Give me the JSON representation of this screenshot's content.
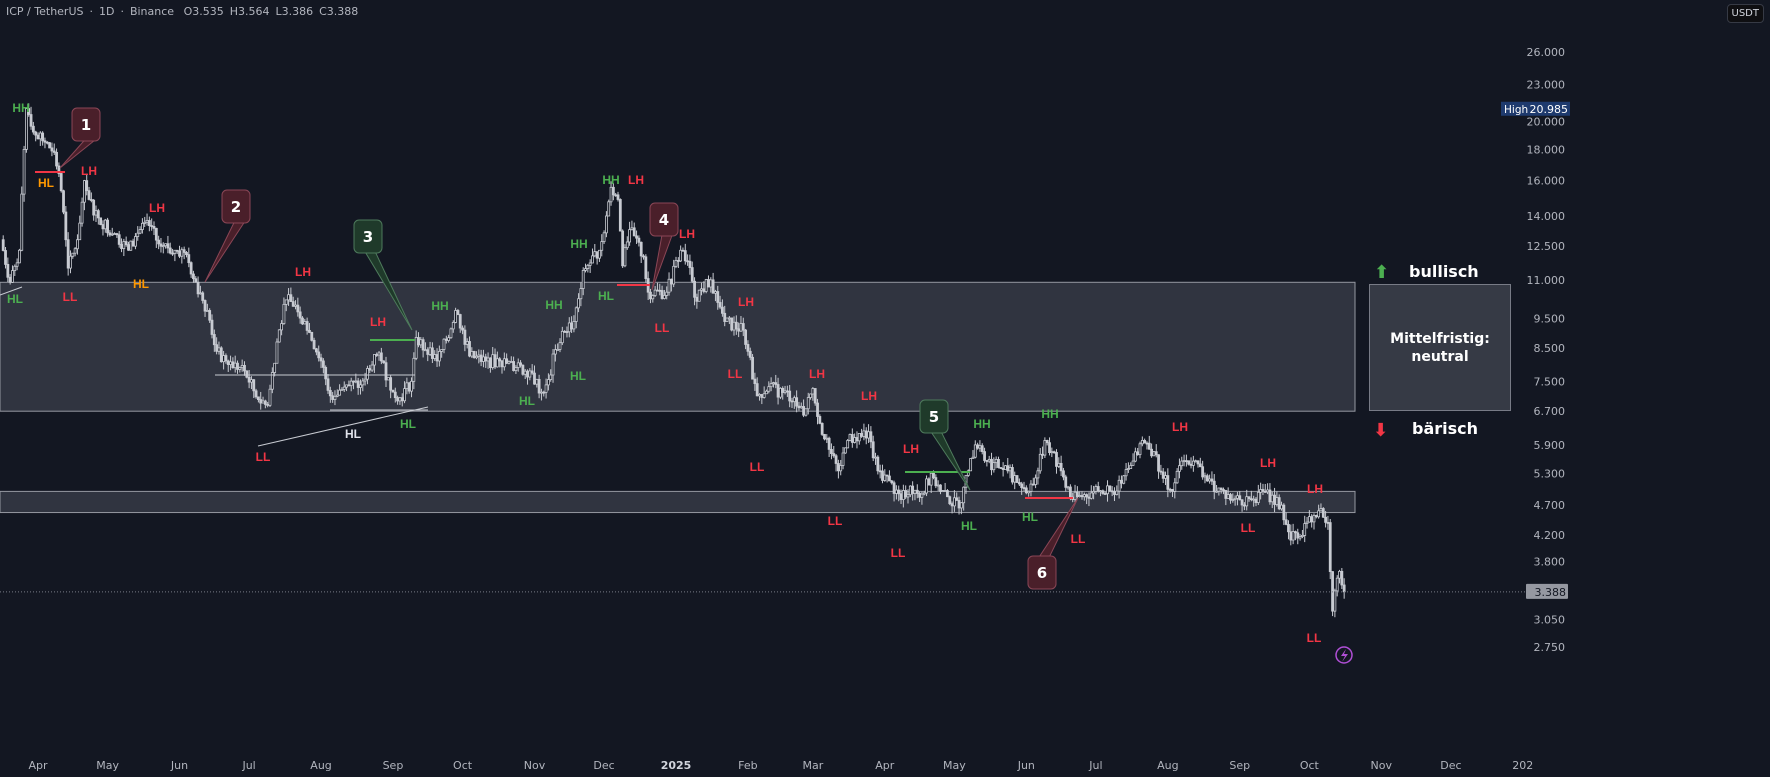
{
  "header": {
    "symbol": "ICP / TetherUS",
    "interval": "1D",
    "exchange": "Binance",
    "open": "O3.535",
    "high": "H3.564",
    "low": "L3.386",
    "close": "C3.388"
  },
  "currency": "USDT",
  "high_marker": {
    "label": "High",
    "value": "20.985"
  },
  "last_price": "3.388",
  "legend_panel": {
    "bullish": "bullisch",
    "title": "Mittelfristig:",
    "state": "neutral",
    "bearish": "bärisch"
  },
  "callouts": [
    "1",
    "2",
    "3",
    "4",
    "5",
    "6"
  ],
  "structure_labels": [
    "HH",
    "HL",
    "HL",
    "LH",
    "LL",
    "LH",
    "HL",
    "LH",
    "LL",
    "HL",
    "LH",
    "HL",
    "HH",
    "HH",
    "HL",
    "HL",
    "HH",
    "HL",
    "HH",
    "LH",
    "LH",
    "LL",
    "LH",
    "LL",
    "LH",
    "LL",
    "LH",
    "LL",
    "LH",
    "LL",
    "HL",
    "HH",
    "HH",
    "HL",
    "LL",
    "LH",
    "LH",
    "LL",
    "LH",
    "LL"
  ],
  "colors": {
    "background": "#131722",
    "bullish": "#4caf50",
    "bearish": "#f23645",
    "orange": "#ff9800",
    "zone": "#363a45",
    "candle": "#c8cbd2",
    "high_badge": "#1e3a6e"
  },
  "chart_data": {
    "type": "candlestick",
    "scale": "log",
    "grid": false,
    "ylim": [
      2.6,
      28
    ],
    "xlim": [
      "2024-03-16",
      "2026-01-05"
    ],
    "y_ticks": [
      "26.000",
      "23.000",
      "20.000",
      "18.000",
      "16.000",
      "14.000",
      "12.500",
      "11.000",
      "9.500",
      "8.500",
      "7.500",
      "6.700",
      "5.900",
      "5.300",
      "4.700",
      "4.200",
      "3.800",
      "3.050",
      "2.750"
    ],
    "x_ticks": [
      {
        "label": "Apr",
        "date": "2024-04-01"
      },
      {
        "label": "May",
        "date": "2024-05-01"
      },
      {
        "label": "Jun",
        "date": "2024-06-01"
      },
      {
        "label": "Jul",
        "date": "2024-07-01"
      },
      {
        "label": "Aug",
        "date": "2024-08-01"
      },
      {
        "label": "Sep",
        "date": "2024-09-01"
      },
      {
        "label": "Oct",
        "date": "2024-10-01"
      },
      {
        "label": "Nov",
        "date": "2024-11-01"
      },
      {
        "label": "Dec",
        "date": "2024-12-01"
      },
      {
        "label": "2025",
        "date": "2025-01-01"
      },
      {
        "label": "Feb",
        "date": "2025-02-01"
      },
      {
        "label": "Mar",
        "date": "2025-03-01"
      },
      {
        "label": "Apr",
        "date": "2025-04-01"
      },
      {
        "label": "May",
        "date": "2025-05-01"
      },
      {
        "label": "Jun",
        "date": "2025-06-01"
      },
      {
        "label": "Jul",
        "date": "2025-07-01"
      },
      {
        "label": "Aug",
        "date": "2025-08-01"
      },
      {
        "label": "Sep",
        "date": "2025-09-01"
      },
      {
        "label": "Oct",
        "date": "2025-10-01"
      },
      {
        "label": "Nov",
        "date": "2025-11-01"
      },
      {
        "label": "Dec",
        "date": "2025-12-01"
      },
      {
        "label": "202",
        "date": "2026-01-01"
      }
    ],
    "zones": [
      {
        "top": 10.9,
        "bottom": 6.7
      },
      {
        "top": 4.95,
        "bottom": 4.57
      }
    ],
    "close_path": [
      [
        "2024-03-16",
        12.8
      ],
      [
        "2024-03-20",
        10.9
      ],
      [
        "2024-03-24",
        12.3
      ],
      [
        "2024-03-26",
        18.0
      ],
      [
        "2024-03-27",
        21.0
      ],
      [
        "2024-03-31",
        19.0
      ],
      [
        "2024-04-04",
        18.5
      ],
      [
        "2024-04-08",
        17.8
      ],
      [
        "2024-04-11",
        15.4
      ],
      [
        "2024-04-13",
        12.8
      ],
      [
        "2024-04-14",
        11.5
      ],
      [
        "2024-04-18",
        12.8
      ],
      [
        "2024-04-21",
        16.0
      ],
      [
        "2024-04-23",
        14.9
      ],
      [
        "2024-04-27",
        13.9
      ],
      [
        "2024-05-04",
        13.1
      ],
      [
        "2024-05-10",
        12.3
      ],
      [
        "2024-05-15",
        13.3
      ],
      [
        "2024-05-19",
        13.5
      ],
      [
        "2024-05-23",
        12.6
      ],
      [
        "2024-05-30",
        12.3
      ],
      [
        "2024-06-04",
        12.1
      ],
      [
        "2024-06-08",
        10.9
      ],
      [
        "2024-06-13",
        9.8
      ],
      [
        "2024-06-17",
        8.4
      ],
      [
        "2024-06-21",
        8.1
      ],
      [
        "2024-06-29",
        7.8
      ],
      [
        "2024-07-05",
        7.0
      ],
      [
        "2024-07-09",
        6.85
      ],
      [
        "2024-07-13",
        8.7
      ],
      [
        "2024-07-17",
        10.2
      ],
      [
        "2024-07-21",
        10.0
      ],
      [
        "2024-07-25",
        9.4
      ],
      [
        "2024-08-01",
        8.1
      ],
      [
        "2024-08-05",
        7.1
      ],
      [
        "2024-08-12",
        7.4
      ],
      [
        "2024-08-18",
        7.4
      ],
      [
        "2024-08-24",
        8.3
      ],
      [
        "2024-08-27",
        8.1
      ],
      [
        "2024-09-01",
        7.2
      ],
      [
        "2024-09-04",
        7.05
      ],
      [
        "2024-09-09",
        7.5
      ],
      [
        "2024-09-11",
        8.85
      ],
      [
        "2024-09-15",
        8.45
      ],
      [
        "2024-09-20",
        8.1
      ],
      [
        "2024-09-24",
        8.75
      ],
      [
        "2024-09-28",
        9.8
      ],
      [
        "2024-10-01",
        9.1
      ],
      [
        "2024-10-04",
        8.25
      ],
      [
        "2024-10-11",
        8.1
      ],
      [
        "2024-10-17",
        8.1
      ],
      [
        "2024-10-24",
        7.9
      ],
      [
        "2024-10-30",
        7.8
      ],
      [
        "2024-11-04",
        7.2
      ],
      [
        "2024-11-07",
        7.55
      ],
      [
        "2024-11-10",
        8.45
      ],
      [
        "2024-11-14",
        9.05
      ],
      [
        "2024-11-18",
        9.4
      ],
      [
        "2024-11-22",
        11.4
      ],
      [
        "2024-11-29",
        12.3
      ],
      [
        "2024-12-02",
        14.0
      ],
      [
        "2024-12-04",
        15.6
      ],
      [
        "2024-12-07",
        14.9
      ],
      [
        "2024-12-09",
        11.6
      ],
      [
        "2024-12-12",
        13.3
      ],
      [
        "2024-12-18",
        12.0
      ],
      [
        "2024-12-20",
        10.5
      ],
      [
        "2024-12-28",
        10.5
      ],
      [
        "2025-01-03",
        12.3
      ],
      [
        "2025-01-06",
        11.8
      ],
      [
        "2025-01-09",
        10.3
      ],
      [
        "2025-01-16",
        11.0
      ],
      [
        "2025-01-22",
        9.4
      ],
      [
        "2025-01-30",
        9.1
      ],
      [
        "2025-02-01",
        8.4
      ],
      [
        "2025-02-05",
        7.1
      ],
      [
        "2025-02-10",
        7.35
      ],
      [
        "2025-02-21",
        7.05
      ],
      [
        "2025-02-25",
        6.6
      ],
      [
        "2025-03-01",
        7.3
      ],
      [
        "2025-03-04",
        6.4
      ],
      [
        "2025-03-08",
        5.8
      ],
      [
        "2025-03-12",
        5.35
      ],
      [
        "2025-03-16",
        6.0
      ],
      [
        "2025-03-25",
        6.2
      ],
      [
        "2025-03-29",
        5.35
      ],
      [
        "2025-04-03",
        5.15
      ],
      [
        "2025-04-08",
        4.8
      ],
      [
        "2025-04-12",
        5.05
      ],
      [
        "2025-04-17",
        4.9
      ],
      [
        "2025-04-21",
        5.3
      ],
      [
        "2025-04-25",
        4.95
      ],
      [
        "2025-05-03",
        4.65
      ],
      [
        "2025-05-07",
        5.35
      ],
      [
        "2025-05-10",
        5.9
      ],
      [
        "2025-05-15",
        5.55
      ],
      [
        "2025-05-24",
        5.35
      ],
      [
        "2025-06-02",
        4.95
      ],
      [
        "2025-06-06",
        5.35
      ],
      [
        "2025-06-09",
        6.0
      ],
      [
        "2025-06-12",
        5.75
      ],
      [
        "2025-06-16",
        5.35
      ],
      [
        "2025-06-21",
        4.8
      ],
      [
        "2025-06-30",
        4.95
      ],
      [
        "2025-07-08",
        4.95
      ],
      [
        "2025-07-13",
        5.25
      ],
      [
        "2025-07-17",
        5.55
      ],
      [
        "2025-07-21",
        6.0
      ],
      [
        "2025-07-26",
        5.75
      ],
      [
        "2025-07-30",
        5.2
      ],
      [
        "2025-08-03",
        4.95
      ],
      [
        "2025-08-07",
        5.55
      ],
      [
        "2025-08-12",
        5.55
      ],
      [
        "2025-08-18",
        5.15
      ],
      [
        "2025-08-29",
        4.8
      ],
      [
        "2025-09-06",
        4.8
      ],
      [
        "2025-09-11",
        4.95
      ],
      [
        "2025-09-19",
        4.7
      ],
      [
        "2025-09-22",
        4.25
      ],
      [
        "2025-09-26",
        4.15
      ],
      [
        "2025-10-01",
        4.5
      ],
      [
        "2025-10-05",
        4.6
      ],
      [
        "2025-10-09",
        4.4
      ],
      [
        "2025-10-11",
        3.15
      ],
      [
        "2025-10-12",
        3.4
      ],
      [
        "2025-10-14",
        3.66
      ],
      [
        "2025-10-16",
        3.388
      ]
    ]
  }
}
